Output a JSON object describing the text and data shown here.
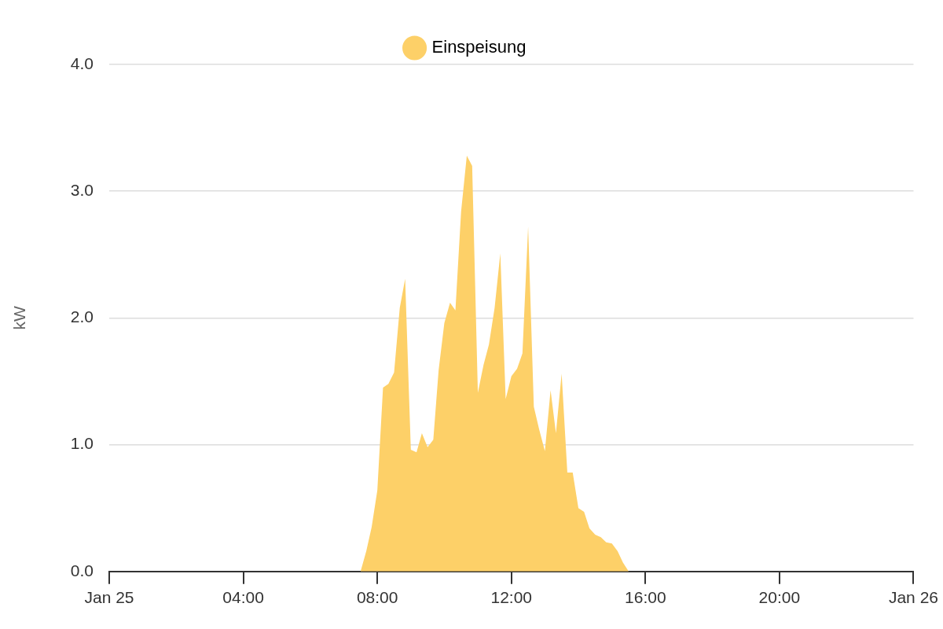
{
  "chart_data": {
    "type": "area",
    "ylabel": "kW",
    "legend": "top",
    "grid": "y",
    "xlim": [
      0,
      24
    ],
    "xticks": [
      {
        "value": 0,
        "label": "Jan 25"
      },
      {
        "value": 4,
        "label": "04:00"
      },
      {
        "value": 8,
        "label": "08:00"
      },
      {
        "value": 12,
        "label": "12:00"
      },
      {
        "value": 16,
        "label": "16:00"
      },
      {
        "value": 20,
        "label": "20:00"
      },
      {
        "value": 24,
        "label": "Jan 26"
      }
    ],
    "ylim": [
      0,
      4
    ],
    "yticks": [
      {
        "value": 0,
        "label": "0.0"
      },
      {
        "value": 1,
        "label": "1.0"
      },
      {
        "value": 2,
        "label": "2.0"
      },
      {
        "value": 3,
        "label": "3.0"
      },
      {
        "value": 4,
        "label": "4.0"
      }
    ],
    "series": [
      {
        "name": "Einspeisung",
        "color": "#fdd068",
        "x": [
          0,
          7.5,
          7.67,
          7.83,
          8,
          8.17,
          8.33,
          8.5,
          8.67,
          8.83,
          9,
          9.17,
          9.33,
          9.5,
          9.67,
          9.83,
          10,
          10.17,
          10.33,
          10.5,
          10.67,
          10.83,
          11,
          11.17,
          11.33,
          11.5,
          11.67,
          11.83,
          12,
          12.17,
          12.33,
          12.5,
          12.67,
          12.83,
          13,
          13.17,
          13.33,
          13.5,
          13.67,
          13.83,
          14,
          14.17,
          14.33,
          14.5,
          14.67,
          14.83,
          15,
          15.17,
          15.33,
          15.5,
          24
        ],
        "values": [
          0,
          0,
          0.16,
          0.35,
          0.64,
          1.45,
          1.48,
          1.57,
          2.08,
          2.31,
          0.96,
          0.94,
          1.09,
          0.98,
          1.04,
          1.59,
          1.96,
          2.12,
          2.06,
          2.84,
          3.28,
          3.2,
          1.41,
          1.63,
          1.79,
          2.08,
          2.51,
          1.36,
          1.54,
          1.6,
          1.72,
          2.72,
          1.3,
          1.12,
          0.95,
          1.43,
          1.09,
          1.56,
          0.78,
          0.78,
          0.5,
          0.47,
          0.34,
          0.29,
          0.27,
          0.23,
          0.22,
          0.16,
          0.07,
          0,
          0
        ]
      }
    ]
  }
}
